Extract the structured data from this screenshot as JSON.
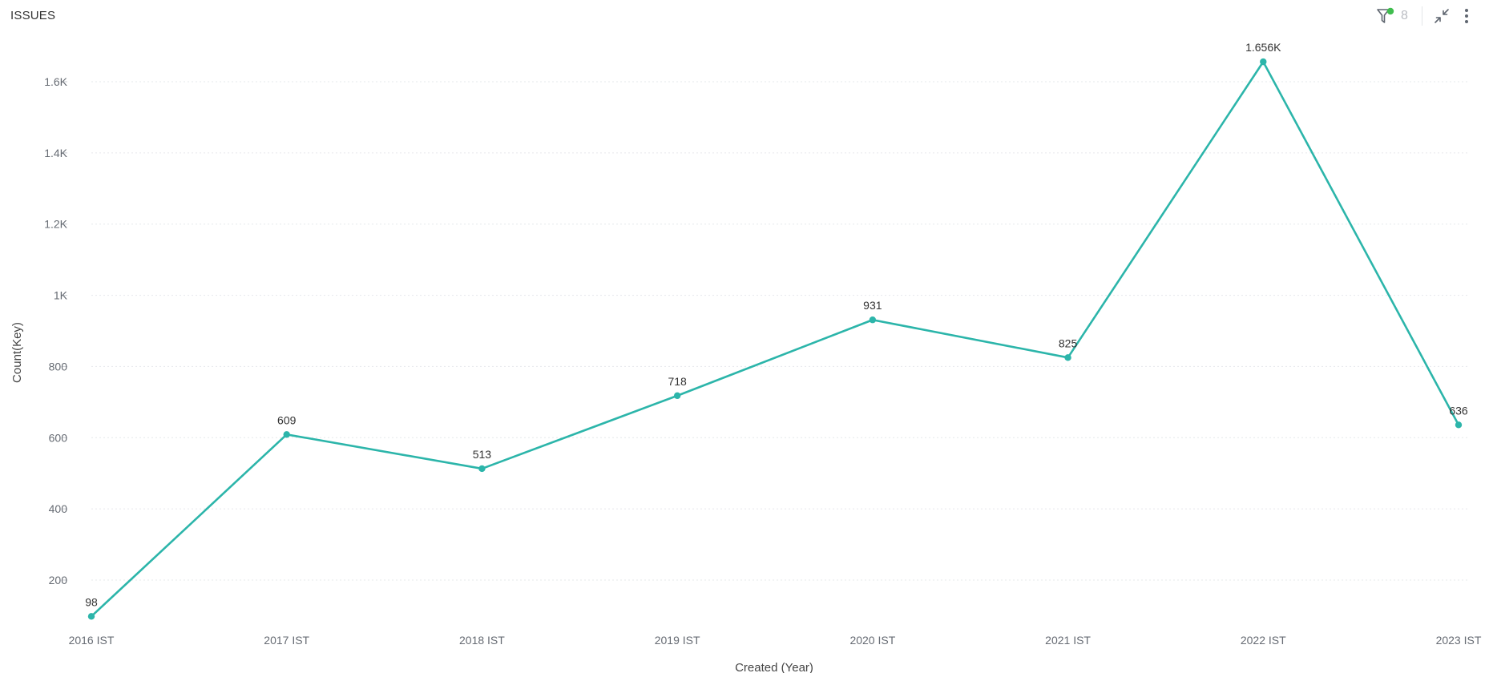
{
  "header": {
    "title": "ISSUES",
    "filter_count": "8",
    "icons": {
      "filter": "filter-icon",
      "status_dot": "active-filter-dot",
      "collapse": "collapse-icon",
      "menu": "more-vertical-icon"
    }
  },
  "colors": {
    "series": "#2cb5aa",
    "filter_dot": "#3fbd4e",
    "grid": "#e6e8eb",
    "axis_text": "#666b73"
  },
  "chart_data": {
    "type": "line",
    "xlabel": "Created (Year)",
    "ylabel": "Count(Key)",
    "categories": [
      "2016 IST",
      "2017 IST",
      "2018 IST",
      "2019 IST",
      "2020 IST",
      "2021 IST",
      "2022 IST",
      "2023 IST"
    ],
    "series": [
      {
        "values": [
          98,
          609,
          513,
          718,
          931,
          825,
          1656,
          636
        ],
        "labels": [
          "98",
          "609",
          "513",
          "718",
          "931",
          "825",
          "1.656K",
          "636"
        ]
      }
    ],
    "y_ticks": [
      200,
      400,
      600,
      800,
      1000,
      1200,
      1400,
      1600
    ],
    "y_tick_labels": [
      "200",
      "400",
      "600",
      "800",
      "1K",
      "1.2K",
      "1.4K",
      "1.6K"
    ],
    "ylim": [
      98,
      1656
    ],
    "grid": "horizontal-dotted",
    "legend": "none"
  }
}
